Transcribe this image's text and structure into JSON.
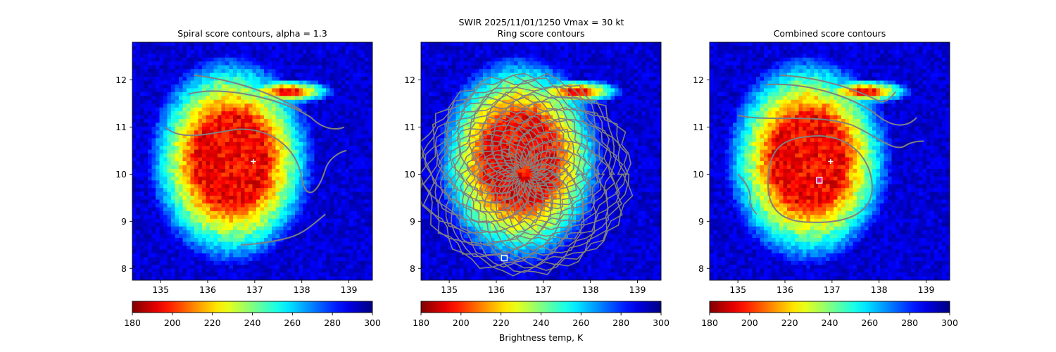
{
  "suptitle": {
    "line1": "SWIR  2025/11/01/1250    Vmax = 30 kt"
  },
  "colorbar": {
    "label": "Brightness temp, K",
    "range": [
      180,
      300
    ],
    "ticks": [
      "180",
      "200",
      "220",
      "240",
      "260",
      "280",
      "300"
    ],
    "colormap": "jet_r"
  },
  "chart_data": [
    {
      "type": "heatmap",
      "title": "Spiral score contours, alpha =  1.3",
      "xlim": [
        134.4,
        139.5
      ],
      "ylim": [
        7.75,
        12.8
      ],
      "xticks": [
        "135",
        "136",
        "137",
        "138",
        "139"
      ],
      "yticks": [
        "8",
        "9",
        "10",
        "11",
        "12"
      ],
      "value_range": [
        180,
        300
      ],
      "markers": [
        {
          "kind": "plus",
          "color": "#ffffff",
          "x": 136.97,
          "y": 10.27
        }
      ],
      "contour_color": "#808080",
      "show_colorbar_label": false
    },
    {
      "type": "heatmap",
      "title": "Ring score contours",
      "xlim": [
        134.4,
        139.5
      ],
      "ylim": [
        7.75,
        12.8
      ],
      "xticks": [
        "135",
        "136",
        "137",
        "138",
        "139"
      ],
      "yticks": [
        "8",
        "9",
        "10",
        "11",
        "12"
      ],
      "value_range": [
        180,
        300
      ],
      "markers": [
        {
          "kind": "square",
          "color": "#ffffff",
          "x": 136.17,
          "y": 8.22
        }
      ],
      "contour_color": "#808080",
      "show_colorbar_label": true
    },
    {
      "type": "heatmap",
      "title": "Combined score contours",
      "xlim": [
        134.4,
        139.5
      ],
      "ylim": [
        7.75,
        12.8
      ],
      "xticks": [
        "135",
        "136",
        "137",
        "138",
        "139"
      ],
      "yticks": [
        "8",
        "9",
        "10",
        "11",
        "12"
      ],
      "value_range": [
        180,
        300
      ],
      "markers": [
        {
          "kind": "plus",
          "color": "#ffffff",
          "x": 136.97,
          "y": 10.27
        },
        {
          "kind": "square",
          "color": "#ffffff",
          "x": 136.73,
          "y": 9.87
        },
        {
          "kind": "circle",
          "color": "#d11fc8",
          "x": 136.73,
          "y": 9.87
        }
      ],
      "contour_color": "#808080",
      "show_colorbar_label": false
    }
  ]
}
